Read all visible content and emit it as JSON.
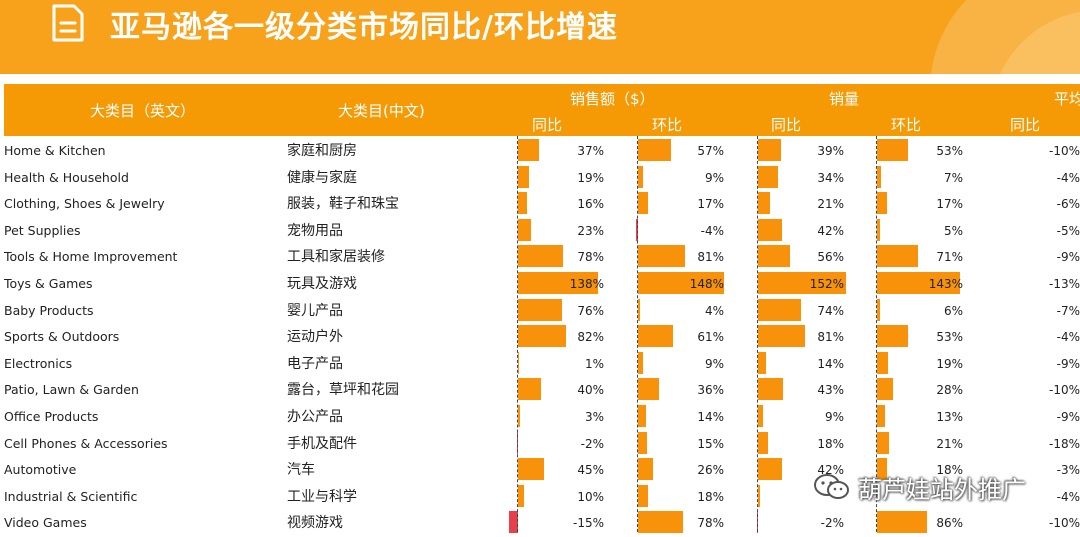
{
  "title": "亚马逊各一级分类市场同比/环比增速",
  "header": {
    "col_en": "大类目（英文）",
    "col_cn": "大类目(中文)",
    "group_sales": "销售额（$）",
    "group_volume": "销量",
    "group_avg": "平均",
    "yoy": "同比",
    "mom": "环比"
  },
  "rows": [
    {
      "en": "Home & Kitchen",
      "cn": "家庭和厨房",
      "s_yoy": "37%",
      "s_mom": "57%",
      "v_yoy": "39%",
      "v_mom": "53%",
      "a_yoy": "-10%",
      "s_yoy_n": 37,
      "s_mom_n": 57,
      "v_yoy_n": 39,
      "v_mom_n": 53
    },
    {
      "en": "Health & Household",
      "cn": "健康与家庭",
      "s_yoy": "19%",
      "s_mom": "9%",
      "v_yoy": "34%",
      "v_mom": "7%",
      "a_yoy": "-4%",
      "s_yoy_n": 19,
      "s_mom_n": 9,
      "v_yoy_n": 34,
      "v_mom_n": 7
    },
    {
      "en": "Clothing, Shoes & Jewelry",
      "cn": "服装，鞋子和珠宝",
      "s_yoy": "16%",
      "s_mom": "17%",
      "v_yoy": "21%",
      "v_mom": "17%",
      "a_yoy": "-6%",
      "s_yoy_n": 16,
      "s_mom_n": 17,
      "v_yoy_n": 21,
      "v_mom_n": 17
    },
    {
      "en": "Pet Supplies",
      "cn": "宠物用品",
      "s_yoy": "23%",
      "s_mom": "-4%",
      "v_yoy": "42%",
      "v_mom": "5%",
      "a_yoy": "-5%",
      "s_yoy_n": 23,
      "s_mom_n": -4,
      "v_yoy_n": 42,
      "v_mom_n": 5
    },
    {
      "en": "Tools & Home Improvement",
      "cn": "工具和家居装修",
      "s_yoy": "78%",
      "s_mom": "81%",
      "v_yoy": "56%",
      "v_mom": "71%",
      "a_yoy": "-9%",
      "s_yoy_n": 78,
      "s_mom_n": 81,
      "v_yoy_n": 56,
      "v_mom_n": 71
    },
    {
      "en": "Toys & Games",
      "cn": "玩具及游戏",
      "s_yoy": "138%",
      "s_mom": "148%",
      "v_yoy": "152%",
      "v_mom": "143%",
      "a_yoy": "-13%",
      "s_yoy_n": 138,
      "s_mom_n": 148,
      "v_yoy_n": 152,
      "v_mom_n": 143
    },
    {
      "en": "Baby Products",
      "cn": "婴儿产品",
      "s_yoy": "76%",
      "s_mom": "4%",
      "v_yoy": "74%",
      "v_mom": "6%",
      "a_yoy": "-7%",
      "s_yoy_n": 76,
      "s_mom_n": 4,
      "v_yoy_n": 74,
      "v_mom_n": 6
    },
    {
      "en": "Sports & Outdoors",
      "cn": "运动户外",
      "s_yoy": "82%",
      "s_mom": "61%",
      "v_yoy": "81%",
      "v_mom": "53%",
      "a_yoy": "-4%",
      "s_yoy_n": 82,
      "s_mom_n": 61,
      "v_yoy_n": 81,
      "v_mom_n": 53
    },
    {
      "en": "Electronics",
      "cn": "电子产品",
      "s_yoy": "1%",
      "s_mom": "9%",
      "v_yoy": "14%",
      "v_mom": "19%",
      "a_yoy": "-9%",
      "s_yoy_n": 1,
      "s_mom_n": 9,
      "v_yoy_n": 14,
      "v_mom_n": 19
    },
    {
      "en": "Patio, Lawn & Garden",
      "cn": "露台，草坪和花园",
      "s_yoy": "40%",
      "s_mom": "36%",
      "v_yoy": "43%",
      "v_mom": "28%",
      "a_yoy": "-10%",
      "s_yoy_n": 40,
      "s_mom_n": 36,
      "v_yoy_n": 43,
      "v_mom_n": 28
    },
    {
      "en": "Office Products",
      "cn": "办公产品",
      "s_yoy": "3%",
      "s_mom": "14%",
      "v_yoy": "9%",
      "v_mom": "13%",
      "a_yoy": "-9%",
      "s_yoy_n": 3,
      "s_mom_n": 14,
      "v_yoy_n": 9,
      "v_mom_n": 13
    },
    {
      "en": "Cell Phones & Accessories",
      "cn": "手机及配件",
      "s_yoy": "-2%",
      "s_mom": "15%",
      "v_yoy": "18%",
      "v_mom": "21%",
      "a_yoy": "-18%",
      "s_yoy_n": -2,
      "s_mom_n": 15,
      "v_yoy_n": 18,
      "v_mom_n": 21
    },
    {
      "en": "Automotive",
      "cn": "汽车",
      "s_yoy": "45%",
      "s_mom": "26%",
      "v_yoy": "42%",
      "v_mom": "18%",
      "a_yoy": "-3%",
      "s_yoy_n": 45,
      "s_mom_n": 26,
      "v_yoy_n": 42,
      "v_mom_n": 18
    },
    {
      "en": "Industrial & Scientific",
      "cn": "工业与科学",
      "s_yoy": "10%",
      "s_mom": "18%",
      "v_yoy": "",
      "v_mom": "",
      "a_yoy": "-4%",
      "s_yoy_n": 10,
      "s_mom_n": 18,
      "v_yoy_n": 3,
      "v_mom_n": 0
    },
    {
      "en": "Video Games",
      "cn": "视频游戏",
      "s_yoy": "-15%",
      "s_mom": "78%",
      "v_yoy": "-2%",
      "v_mom": "86%",
      "a_yoy": "-10%",
      "s_yoy_n": -15,
      "s_mom_n": 78,
      "v_yoy_n": -2,
      "v_mom_n": 86
    }
  ],
  "watermark": "葫芦娃站外推广",
  "colors": {
    "banner": "#f8a11b",
    "header": "#f59a05",
    "bar_positive": "#f7920a",
    "bar_negative": "#e8404a"
  }
}
